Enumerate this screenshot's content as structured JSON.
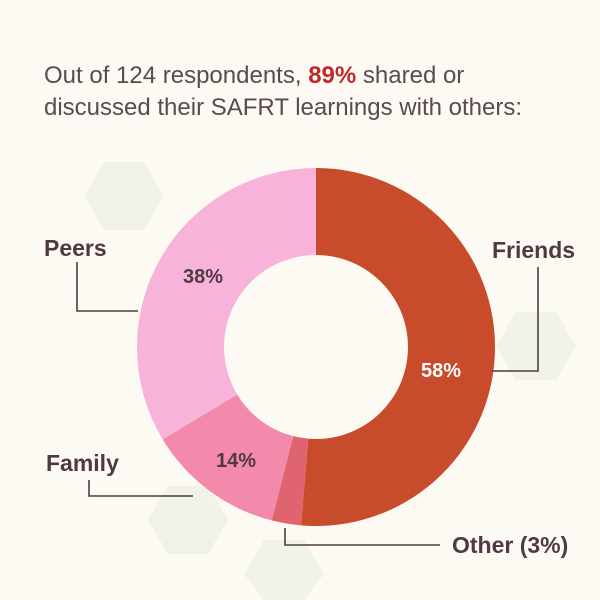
{
  "header": {
    "prefix": "Out of 124 respondents, ",
    "highlight": "89%",
    "suffix": " shared or discussed their SAFRT learnings with others:"
  },
  "colors": {
    "background": "#fcfaf3",
    "friends": "#c84b2b",
    "other": "#e0646f",
    "family": "#f48aab",
    "peers": "#f8b3da",
    "highlight": "#c0282e",
    "leader": "#4f3a43"
  },
  "chart_data": {
    "type": "pie",
    "donut": true,
    "slices": [
      {
        "label": "Friends",
        "value": 58,
        "value_label": "58%"
      },
      {
        "label": "Other (3%)",
        "value": 3,
        "value_label": ""
      },
      {
        "label": "Family",
        "value": 14,
        "value_label": "14%"
      },
      {
        "label": "Peers",
        "value": 38,
        "value_label": "38%"
      }
    ]
  }
}
